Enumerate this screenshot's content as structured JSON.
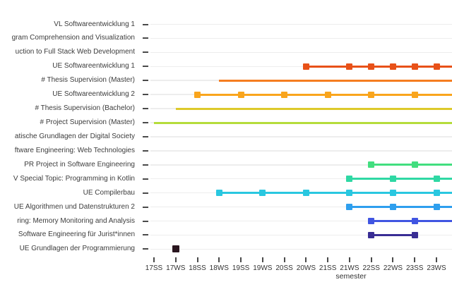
{
  "chart_data": {
    "type": "scatter",
    "subtype": "course-timeline-gantt",
    "title": "",
    "xlabel": "semester",
    "ylabel": "",
    "x_categories": [
      "17SS",
      "17WS",
      "18SS",
      "18WS",
      "19SS",
      "19WS",
      "20SS",
      "20WS",
      "21SS",
      "21WS",
      "22SS",
      "22WS",
      "23SS",
      "23WS"
    ],
    "grid": "horizontal-only",
    "note": "right edge of plot is cut off; lines marked end=edge continue past 23WS",
    "rows": [
      {
        "label": "VL Softwareentwicklung 1",
        "color": null,
        "line": null,
        "markers": []
      },
      {
        "label": "gram Comprehension and Visualization",
        "color": null,
        "line": null,
        "markers": []
      },
      {
        "label": "uction to Full Stack Web Development",
        "color": null,
        "line": null,
        "markers": []
      },
      {
        "label": "UE Softwareentwicklung 1",
        "color": "#e85118",
        "line": {
          "start": "20WS",
          "end": "edge"
        },
        "markers": [
          "20WS",
          "21WS",
          "22SS",
          "22WS",
          "23SS",
          "23WS"
        ]
      },
      {
        "label": "# Thesis Supervision (Master)",
        "color": "#f57d20",
        "line": {
          "start": "18WS",
          "end": "edge"
        },
        "markers": []
      },
      {
        "label": "UE Softwareentwicklung 2",
        "color": "#f9a51d",
        "line": {
          "start": "18SS",
          "end": "edge"
        },
        "markers": [
          "18SS",
          "19SS",
          "20SS",
          "21SS",
          "22SS",
          "23SS"
        ]
      },
      {
        "label": "# Thesis Supervision (Bachelor)",
        "color": "#ddc92b",
        "line": {
          "start": "17WS",
          "end": "edge"
        },
        "markers": []
      },
      {
        "label": "# Project Supervision (Master)",
        "color": "#b5dc3b",
        "line": {
          "start": "17SS",
          "end": "edge"
        },
        "markers": []
      },
      {
        "label": "atische Grundlagen der Digital Society",
        "color": null,
        "line": null,
        "markers": []
      },
      {
        "label": "ftware Engineering: Web Technologies",
        "color": null,
        "line": null,
        "markers": []
      },
      {
        "label": "PR Project in Software Engineering",
        "color": "#42de7f",
        "line": {
          "start": "22SS",
          "end": "edge"
        },
        "markers": [
          "22SS",
          "23SS"
        ]
      },
      {
        "label": "V Special Topic: Programming in Kotlin",
        "color": "#2fd8a4",
        "line": {
          "start": "21WS",
          "end": "edge"
        },
        "markers": [
          "21WS",
          "22WS",
          "23WS"
        ]
      },
      {
        "label": "UE Compilerbau",
        "color": "#29c7e0",
        "line": {
          "start": "18WS",
          "end": "edge"
        },
        "markers": [
          "18WS",
          "19WS",
          "20WS",
          "21WS",
          "22WS",
          "23WS"
        ]
      },
      {
        "label": "UE Algorithmen und Datenstrukturen 2",
        "color": "#2e9fee",
        "line": {
          "start": "21WS",
          "end": "edge"
        },
        "markers": [
          "21WS",
          "22WS",
          "23WS"
        ]
      },
      {
        "label": "ring: Memory Monitoring and Analysis",
        "color": "#4055e2",
        "line": {
          "start": "22SS",
          "end": "edge"
        },
        "markers": [
          "22SS",
          "23SS"
        ]
      },
      {
        "label": "Software Engineering für Jurist*innen",
        "color": "#392d94",
        "line": {
          "start": "22SS",
          "end": "23SS"
        },
        "markers": [
          "22SS",
          "23SS"
        ]
      },
      {
        "label": "UE Grundlagen der Programmierung",
        "color": "#2a161f",
        "line": null,
        "markers": [
          "17WS"
        ]
      }
    ],
    "colors": {
      "background": "#ffffff",
      "gridline": "#ededed",
      "tick": "#4a4a4a",
      "label_text": "#3c3c3c"
    }
  }
}
